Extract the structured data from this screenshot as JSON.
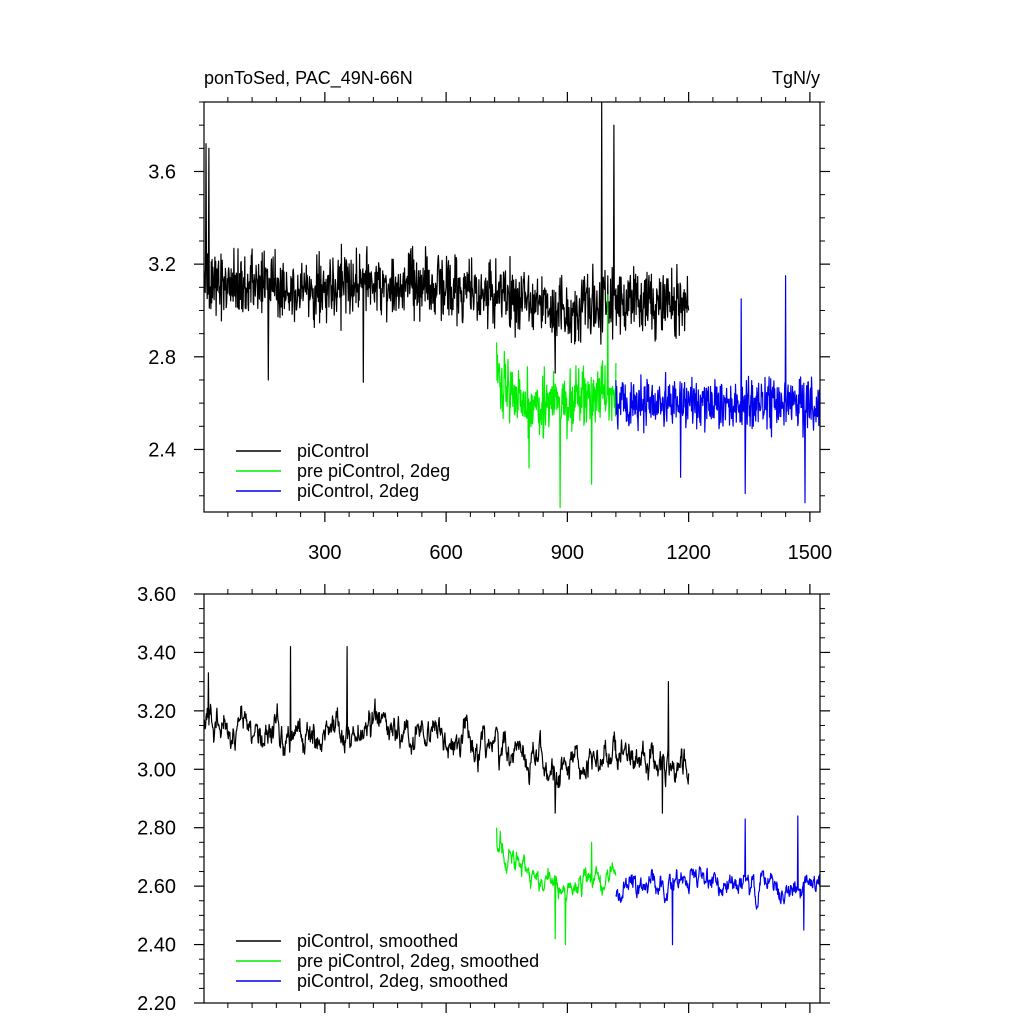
{
  "title_left": "ponToSed, PAC_49N-66N",
  "title_right": "TgN/y",
  "colors": {
    "piControl": "#000000",
    "pre": "#00ee00",
    "twodeg": "#0000ee"
  },
  "chart_data": [
    {
      "type": "line",
      "xlim": [
        1,
        1525
      ],
      "ylim": [
        2.13,
        3.9
      ],
      "x_ticks": [
        300,
        600,
        900,
        1200,
        1500
      ],
      "x_ticklabels": [
        "300",
        "600",
        "900",
        "1200",
        "1500"
      ],
      "y_ticks": [
        2.4,
        2.8,
        3.2,
        3.6
      ],
      "y_ticklabels": [
        "2.4",
        "2.8",
        "3.2",
        "3.6"
      ],
      "legend_position": "bottom-left",
      "series": [
        {
          "name": "piControl",
          "color_key": "piControl",
          "x_range": [
            1,
            1200
          ],
          "anchors": [
            [
              1,
              3.12
            ],
            [
              100,
              3.12
            ],
            [
              200,
              3.1
            ],
            [
              300,
              3.1
            ],
            [
              400,
              3.12
            ],
            [
              500,
              3.1
            ],
            [
              600,
              3.1
            ],
            [
              700,
              3.08
            ],
            [
              800,
              3.05
            ],
            [
              900,
              3.0
            ],
            [
              1000,
              3.05
            ],
            [
              1100,
              3.03
            ],
            [
              1200,
              3.02
            ]
          ],
          "noise": 0.13,
          "spikes": [
            [
              6,
              3.72
            ],
            [
              13,
              3.7
            ],
            [
              985,
              3.9
            ],
            [
              1015,
              3.8
            ],
            [
              870,
              2.73
            ],
            [
              160,
              2.7
            ],
            [
              395,
              2.69
            ]
          ]
        },
        {
          "name": "pre piControl, 2deg",
          "color_key": "pre",
          "x_range": [
            725,
            1020
          ],
          "anchors": [
            [
              725,
              2.72
            ],
            [
              800,
              2.6
            ],
            [
              900,
              2.6
            ],
            [
              1020,
              2.65
            ]
          ],
          "noise": 0.12,
          "spikes": [
            [
              882,
              2.15
            ],
            [
              805,
              2.32
            ],
            [
              960,
              2.25
            ],
            [
              1000,
              3.07
            ]
          ]
        },
        {
          "name": "piControl, 2deg",
          "color_key": "twodeg",
          "x_range": [
            1020,
            1525
          ],
          "anchors": [
            [
              1020,
              2.6
            ],
            [
              1200,
              2.6
            ],
            [
              1400,
              2.6
            ],
            [
              1525,
              2.6
            ]
          ],
          "noise": 0.11,
          "spikes": [
            [
              1440,
              3.15
            ],
            [
              1488,
              2.17
            ],
            [
              1340,
              2.21
            ],
            [
              1180,
              2.28
            ],
            [
              1330,
              3.05
            ]
          ]
        }
      ]
    },
    {
      "type": "line",
      "xlim": [
        1,
        1525
      ],
      "ylim": [
        2.2,
        3.6
      ],
      "x_ticks": [
        300,
        600,
        900,
        1200,
        1500
      ],
      "y_ticks": [
        2.2,
        2.4,
        2.6,
        2.8,
        3.0,
        3.2,
        3.4,
        3.6
      ],
      "y_ticklabels": [
        "2.20",
        "2.40",
        "2.60",
        "2.80",
        "3.00",
        "3.20",
        "3.40",
        "3.60"
      ],
      "legend_position": "bottom-left",
      "series": [
        {
          "name": "piControl, smoothed",
          "color_key": "piControl",
          "x_range": [
            1,
            1200
          ],
          "anchors": [
            [
              1,
              3.15
            ],
            [
              100,
              3.14
            ],
            [
              200,
              3.12
            ],
            [
              300,
              3.12
            ],
            [
              400,
              3.15
            ],
            [
              500,
              3.12
            ],
            [
              600,
              3.1
            ],
            [
              700,
              3.1
            ],
            [
              800,
              3.05
            ],
            [
              900,
              3.0
            ],
            [
              1000,
              3.05
            ],
            [
              1100,
              3.03
            ],
            [
              1200,
              3.0
            ]
          ],
          "noise": 0.11,
          "spikes": [
            [
              12,
              3.33
            ],
            [
              355,
              3.42
            ],
            [
              215,
              3.42
            ],
            [
              1135,
              2.85
            ],
            [
              870,
              2.85
            ],
            [
              1150,
              3.3
            ]
          ]
        },
        {
          "name": "pre piControl, 2deg, smoothed",
          "color_key": "pre",
          "x_range": [
            725,
            1020
          ],
          "anchors": [
            [
              725,
              2.74
            ],
            [
              800,
              2.65
            ],
            [
              900,
              2.58
            ],
            [
              1020,
              2.65
            ]
          ],
          "noise": 0.08,
          "spikes": [
            [
              725,
              2.8
            ],
            [
              870,
              2.42
            ],
            [
              895,
              2.4
            ],
            [
              960,
              2.75
            ]
          ]
        },
        {
          "name": "piControl, 2deg, smoothed",
          "color_key": "twodeg",
          "x_range": [
            1020,
            1525
          ],
          "anchors": [
            [
              1020,
              2.58
            ],
            [
              1200,
              2.62
            ],
            [
              1400,
              2.6
            ],
            [
              1525,
              2.6
            ]
          ],
          "noise": 0.08,
          "spikes": [
            [
              1160,
              2.4
            ],
            [
              1485,
              2.45
            ],
            [
              1470,
              2.84
            ],
            [
              1340,
              2.83
            ]
          ]
        }
      ]
    }
  ]
}
